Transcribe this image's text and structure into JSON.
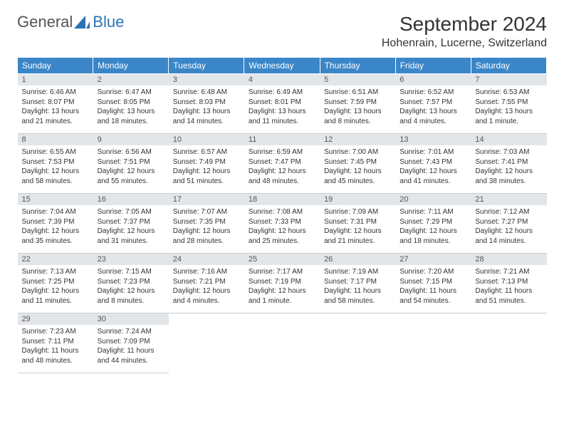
{
  "logo": {
    "text1": "General",
    "text2": "Blue"
  },
  "title": "September 2024",
  "location": "Hohenrain, Lucerne, Switzerland",
  "colors": {
    "header_bg": "#3a86c8",
    "header_text": "#ffffff",
    "daynum_bg": "#e3e6e9",
    "daynum_text": "#555555",
    "body_text": "#333333",
    "border": "#cccccc",
    "logo_gray": "#555555",
    "logo_blue": "#2d73b4"
  },
  "typography": {
    "title_fontsize": 28,
    "location_fontsize": 16,
    "header_fontsize": 12,
    "daynum_fontsize": 11,
    "content_fontsize": 10
  },
  "weekdays": [
    "Sunday",
    "Monday",
    "Tuesday",
    "Wednesday",
    "Thursday",
    "Friday",
    "Saturday"
  ],
  "weeks": [
    [
      {
        "day": "1",
        "sunrise": "Sunrise: 6:46 AM",
        "sunset": "Sunset: 8:07 PM",
        "daylight": "Daylight: 13 hours and 21 minutes."
      },
      {
        "day": "2",
        "sunrise": "Sunrise: 6:47 AM",
        "sunset": "Sunset: 8:05 PM",
        "daylight": "Daylight: 13 hours and 18 minutes."
      },
      {
        "day": "3",
        "sunrise": "Sunrise: 6:48 AM",
        "sunset": "Sunset: 8:03 PM",
        "daylight": "Daylight: 13 hours and 14 minutes."
      },
      {
        "day": "4",
        "sunrise": "Sunrise: 6:49 AM",
        "sunset": "Sunset: 8:01 PM",
        "daylight": "Daylight: 13 hours and 11 minutes."
      },
      {
        "day": "5",
        "sunrise": "Sunrise: 6:51 AM",
        "sunset": "Sunset: 7:59 PM",
        "daylight": "Daylight: 13 hours and 8 minutes."
      },
      {
        "day": "6",
        "sunrise": "Sunrise: 6:52 AM",
        "sunset": "Sunset: 7:57 PM",
        "daylight": "Daylight: 13 hours and 4 minutes."
      },
      {
        "day": "7",
        "sunrise": "Sunrise: 6:53 AM",
        "sunset": "Sunset: 7:55 PM",
        "daylight": "Daylight: 13 hours and 1 minute."
      }
    ],
    [
      {
        "day": "8",
        "sunrise": "Sunrise: 6:55 AM",
        "sunset": "Sunset: 7:53 PM",
        "daylight": "Daylight: 12 hours and 58 minutes."
      },
      {
        "day": "9",
        "sunrise": "Sunrise: 6:56 AM",
        "sunset": "Sunset: 7:51 PM",
        "daylight": "Daylight: 12 hours and 55 minutes."
      },
      {
        "day": "10",
        "sunrise": "Sunrise: 6:57 AM",
        "sunset": "Sunset: 7:49 PM",
        "daylight": "Daylight: 12 hours and 51 minutes."
      },
      {
        "day": "11",
        "sunrise": "Sunrise: 6:59 AM",
        "sunset": "Sunset: 7:47 PM",
        "daylight": "Daylight: 12 hours and 48 minutes."
      },
      {
        "day": "12",
        "sunrise": "Sunrise: 7:00 AM",
        "sunset": "Sunset: 7:45 PM",
        "daylight": "Daylight: 12 hours and 45 minutes."
      },
      {
        "day": "13",
        "sunrise": "Sunrise: 7:01 AM",
        "sunset": "Sunset: 7:43 PM",
        "daylight": "Daylight: 12 hours and 41 minutes."
      },
      {
        "day": "14",
        "sunrise": "Sunrise: 7:03 AM",
        "sunset": "Sunset: 7:41 PM",
        "daylight": "Daylight: 12 hours and 38 minutes."
      }
    ],
    [
      {
        "day": "15",
        "sunrise": "Sunrise: 7:04 AM",
        "sunset": "Sunset: 7:39 PM",
        "daylight": "Daylight: 12 hours and 35 minutes."
      },
      {
        "day": "16",
        "sunrise": "Sunrise: 7:05 AM",
        "sunset": "Sunset: 7:37 PM",
        "daylight": "Daylight: 12 hours and 31 minutes."
      },
      {
        "day": "17",
        "sunrise": "Sunrise: 7:07 AM",
        "sunset": "Sunset: 7:35 PM",
        "daylight": "Daylight: 12 hours and 28 minutes."
      },
      {
        "day": "18",
        "sunrise": "Sunrise: 7:08 AM",
        "sunset": "Sunset: 7:33 PM",
        "daylight": "Daylight: 12 hours and 25 minutes."
      },
      {
        "day": "19",
        "sunrise": "Sunrise: 7:09 AM",
        "sunset": "Sunset: 7:31 PM",
        "daylight": "Daylight: 12 hours and 21 minutes."
      },
      {
        "day": "20",
        "sunrise": "Sunrise: 7:11 AM",
        "sunset": "Sunset: 7:29 PM",
        "daylight": "Daylight: 12 hours and 18 minutes."
      },
      {
        "day": "21",
        "sunrise": "Sunrise: 7:12 AM",
        "sunset": "Sunset: 7:27 PM",
        "daylight": "Daylight: 12 hours and 14 minutes."
      }
    ],
    [
      {
        "day": "22",
        "sunrise": "Sunrise: 7:13 AM",
        "sunset": "Sunset: 7:25 PM",
        "daylight": "Daylight: 12 hours and 11 minutes."
      },
      {
        "day": "23",
        "sunrise": "Sunrise: 7:15 AM",
        "sunset": "Sunset: 7:23 PM",
        "daylight": "Daylight: 12 hours and 8 minutes."
      },
      {
        "day": "24",
        "sunrise": "Sunrise: 7:16 AM",
        "sunset": "Sunset: 7:21 PM",
        "daylight": "Daylight: 12 hours and 4 minutes."
      },
      {
        "day": "25",
        "sunrise": "Sunrise: 7:17 AM",
        "sunset": "Sunset: 7:19 PM",
        "daylight": "Daylight: 12 hours and 1 minute."
      },
      {
        "day": "26",
        "sunrise": "Sunrise: 7:19 AM",
        "sunset": "Sunset: 7:17 PM",
        "daylight": "Daylight: 11 hours and 58 minutes."
      },
      {
        "day": "27",
        "sunrise": "Sunrise: 7:20 AM",
        "sunset": "Sunset: 7:15 PM",
        "daylight": "Daylight: 11 hours and 54 minutes."
      },
      {
        "day": "28",
        "sunrise": "Sunrise: 7:21 AM",
        "sunset": "Sunset: 7:13 PM",
        "daylight": "Daylight: 11 hours and 51 minutes."
      }
    ],
    [
      {
        "day": "29",
        "sunrise": "Sunrise: 7:23 AM",
        "sunset": "Sunset: 7:11 PM",
        "daylight": "Daylight: 11 hours and 48 minutes."
      },
      {
        "day": "30",
        "sunrise": "Sunrise: 7:24 AM",
        "sunset": "Sunset: 7:09 PM",
        "daylight": "Daylight: 11 hours and 44 minutes."
      },
      {
        "empty": true
      },
      {
        "empty": true
      },
      {
        "empty": true
      },
      {
        "empty": true
      },
      {
        "empty": true
      }
    ]
  ]
}
